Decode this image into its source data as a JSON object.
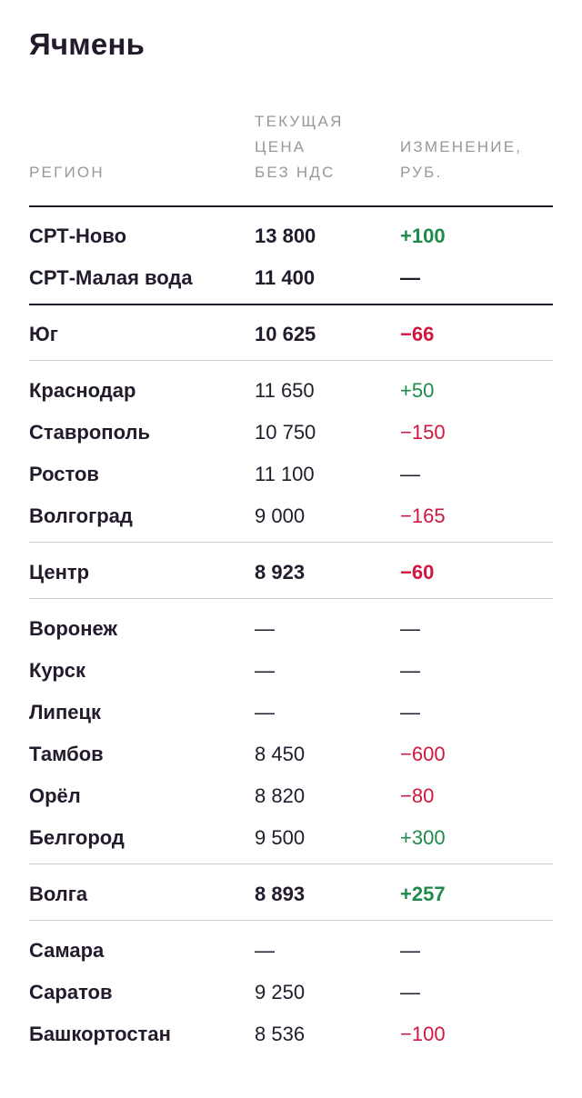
{
  "title": "Ячмень",
  "headers": {
    "region": "РЕГИОН",
    "price": [
      "ТЕКУЩАЯ",
      "ЦЕНА",
      "БЕЗ НДС"
    ],
    "change": [
      "ИЗМЕНЕНИЕ,",
      "РУБ."
    ]
  },
  "colors": {
    "positive": "#1f8a4c",
    "negative": "#d0173f",
    "text": "#231b2c",
    "header": "#9a969d"
  },
  "groups": [
    {
      "rows": [
        {
          "name": "СРТ-Ново",
          "price": "13 800",
          "change": "+100",
          "bold": true
        },
        {
          "name": "СРТ-Малая вода",
          "price": "11 400",
          "change": "—",
          "bold": true
        }
      ]
    },
    {
      "rows": [
        {
          "name": "Юг",
          "price": "10 625",
          "change": "−66",
          "bold": true
        }
      ]
    },
    {
      "rows": [
        {
          "name": "Краснодар",
          "price": "11 650",
          "change": "+50",
          "bold": false
        },
        {
          "name": "Ставрополь",
          "price": "10 750",
          "change": "−150",
          "bold": false
        },
        {
          "name": "Ростов",
          "price": "11 100",
          "change": "—",
          "bold": false
        },
        {
          "name": "Волгоград",
          "price": "9 000",
          "change": "−165",
          "bold": false
        }
      ]
    },
    {
      "rows": [
        {
          "name": "Центр",
          "price": "8 923",
          "change": "−60",
          "bold": true
        }
      ]
    },
    {
      "rows": [
        {
          "name": "Воронеж",
          "price": "—",
          "change": "—",
          "bold": false
        },
        {
          "name": "Курск",
          "price": "—",
          "change": "—",
          "bold": false
        },
        {
          "name": "Липецк",
          "price": "—",
          "change": "—",
          "bold": false
        },
        {
          "name": "Тамбов",
          "price": "8 450",
          "change": "−600",
          "bold": false
        },
        {
          "name": "Орёл",
          "price": "8 820",
          "change": "−80",
          "bold": false
        },
        {
          "name": "Белгород",
          "price": "9 500",
          "change": "+300",
          "bold": false
        }
      ]
    },
    {
      "rows": [
        {
          "name": "Волга",
          "price": "8 893",
          "change": "+257",
          "bold": true
        }
      ]
    },
    {
      "rows": [
        {
          "name": "Самара",
          "price": "—",
          "change": "—",
          "bold": false
        },
        {
          "name": "Саратов",
          "price": "9 250",
          "change": "—",
          "bold": false
        },
        {
          "name": "Башкортостан",
          "price": "8 536",
          "change": "−100",
          "bold": false
        }
      ]
    }
  ]
}
